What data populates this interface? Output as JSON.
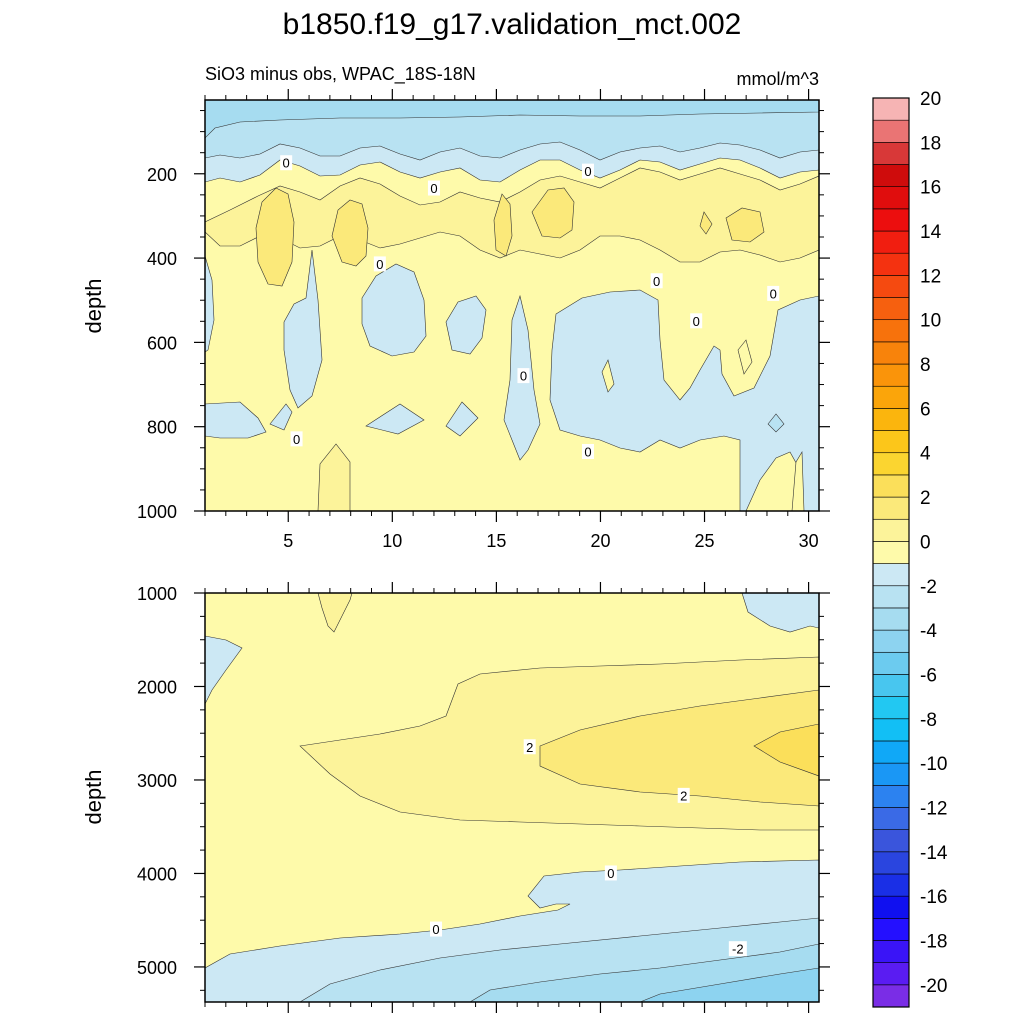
{
  "chart_data": {
    "type": "heatmap",
    "title": "b1850.f19_g17.validation_mct.002",
    "subtitle_left": "SiO3 minus obs, WPAC_18S-18N",
    "subtitle_right": "mmol/m^3",
    "variable": "SiO3 minus obs",
    "region": "WPAC_18S-18N",
    "units": "mmol/m^3",
    "panels": [
      {
        "name": "upper",
        "ylabel": "depth",
        "xlabel": "",
        "xlim": [
          1,
          30.5
        ],
        "ylim": [
          1000,
          25
        ],
        "xticks": [
          5,
          10,
          15,
          20,
          25,
          30
        ],
        "xtick_labels": [
          "5",
          "10",
          "15",
          "20",
          "25",
          "30"
        ],
        "yticks": [
          200,
          400,
          600,
          800,
          1000
        ],
        "ytick_labels": [
          "200",
          "400",
          "600",
          "800",
          "1000"
        ],
        "contour_labels": [
          {
            "x": 4.9,
            "y": 175,
            "text": "0"
          },
          {
            "x": 12.0,
            "y": 235,
            "text": "0"
          },
          {
            "x": 19.4,
            "y": 195,
            "text": "0"
          },
          {
            "x": 9.4,
            "y": 415,
            "text": "0"
          },
          {
            "x": 22.7,
            "y": 455,
            "text": "0"
          },
          {
            "x": 28.3,
            "y": 485,
            "text": "0"
          },
          {
            "x": 24.6,
            "y": 550,
            "text": "0"
          },
          {
            "x": 16.3,
            "y": 680,
            "text": "0"
          },
          {
            "x": 5.4,
            "y": 830,
            "text": "0"
          },
          {
            "x": 19.4,
            "y": 860,
            "text": "0"
          }
        ]
      },
      {
        "name": "lower",
        "ylabel": "depth",
        "xlabel": "",
        "xlim": [
          1,
          30.5
        ],
        "ylim": [
          5375,
          1000
        ],
        "xticks": [
          5,
          10,
          15,
          20,
          25,
          30
        ],
        "yticks": [
          1000,
          2000,
          3000,
          4000,
          5000
        ],
        "ytick_labels": [
          "1000",
          "2000",
          "3000",
          "4000",
          "5000"
        ],
        "contour_labels": [
          {
            "x": 16.6,
            "y": 2650,
            "text": "2"
          },
          {
            "x": 24.0,
            "y": 3170,
            "text": "2"
          },
          {
            "x": 20.5,
            "y": 4000,
            "text": "0"
          },
          {
            "x": 12.1,
            "y": 4600,
            "text": "0"
          },
          {
            "x": 26.6,
            "y": 4810,
            "text": "-2"
          }
        ]
      }
    ],
    "colorbar": {
      "levels": [
        -20,
        -19,
        -18,
        -17,
        -16,
        -15,
        -14,
        -13,
        -12,
        -11,
        -10,
        -9,
        -8,
        -7,
        -6,
        -5,
        -4,
        -3,
        -2,
        -1,
        0,
        1,
        2,
        3,
        4,
        5,
        6,
        7,
        8,
        9,
        10,
        11,
        12,
        13,
        14,
        15,
        16,
        17,
        18,
        19,
        20
      ],
      "tick_labels": [
        "-20",
        "-18",
        "-16",
        "-14",
        "-12",
        "-10",
        "-8",
        "-6",
        "-4",
        "-2",
        "0",
        "2",
        "4",
        "6",
        "8",
        "10",
        "12",
        "14",
        "16",
        "18",
        "20"
      ],
      "colors": [
        "#7a2de6",
        "#5a1cf2",
        "#3a14f7",
        "#2410ff",
        "#1010f0",
        "#1a2fe6",
        "#2a45df",
        "#3a55dc",
        "#3a6ae6",
        "#2c82f0",
        "#1a97f5",
        "#10a8f7",
        "#12bff5",
        "#22c8f2",
        "#48c6ef",
        "#6ccbef",
        "#8dd3f0",
        "#a6dcf0",
        "#b8e2f2",
        "#cce8f4",
        "#fefaaa",
        "#fcf39a",
        "#fbe97a",
        "#fbdf5a",
        "#fbd530",
        "#fcc61a",
        "#fbb50d",
        "#fba50a",
        "#fa940a",
        "#f8830b",
        "#f7720c",
        "#f6600f",
        "#f54a10",
        "#f43210",
        "#f11e10",
        "#ec0e0e",
        "#e00d0d",
        "#cf0c0c",
        "#d83838",
        "#ea7474",
        "#f6b4b4"
      ]
    }
  }
}
